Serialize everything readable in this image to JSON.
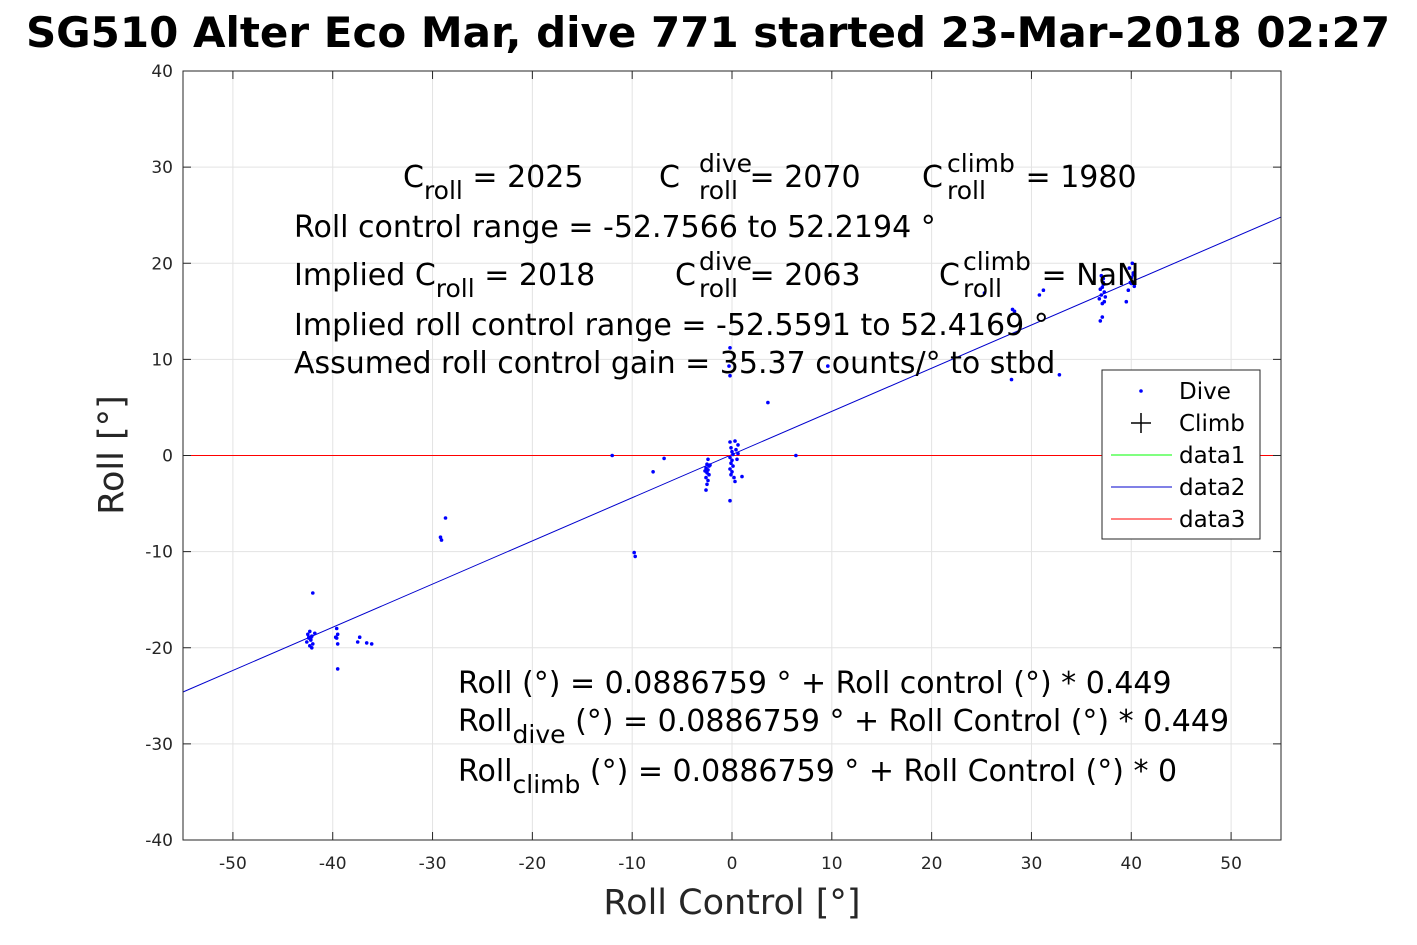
{
  "title": "SG510 Alter Eco Mar, dive 771 started 23-Mar-2018 02:27",
  "chart_data": {
    "type": "scatter",
    "xlabel": "Roll Control [°]",
    "ylabel": "Roll [°]",
    "xlim": [
      -55,
      55
    ],
    "ylim": [
      -40,
      40
    ],
    "xticks": [
      -50,
      -40,
      -30,
      -20,
      -10,
      0,
      10,
      20,
      30,
      40,
      50
    ],
    "yticks": [
      -40,
      -30,
      -20,
      -10,
      0,
      10,
      20,
      30,
      40
    ],
    "grid": true,
    "legend_placement": "right",
    "series": [
      {
        "name": "Dive",
        "marker": "dot",
        "color": "#0000ff",
        "points": [
          [
            -42.0,
            -14.3
          ],
          [
            -42.3,
            -18.3
          ],
          [
            -42.5,
            -18.6
          ],
          [
            -42.1,
            -18.8
          ],
          [
            -42.4,
            -19.0
          ],
          [
            -42.2,
            -19.2
          ],
          [
            -42.6,
            -19.4
          ],
          [
            -42.0,
            -19.6
          ],
          [
            -42.3,
            -19.8
          ],
          [
            -42.1,
            -20.0
          ],
          [
            -41.8,
            -18.5
          ],
          [
            -42.4,
            -18.9
          ],
          [
            -42.2,
            -19.1
          ],
          [
            -39.6,
            -18.0
          ],
          [
            -39.5,
            -18.6
          ],
          [
            -39.7,
            -18.9
          ],
          [
            -39.6,
            -19.0
          ],
          [
            -39.5,
            -19.6
          ],
          [
            -39.5,
            -22.2
          ],
          [
            -37.3,
            -18.9
          ],
          [
            -37.5,
            -19.4
          ],
          [
            -36.6,
            -19.5
          ],
          [
            -36.1,
            -19.6
          ],
          [
            -29.2,
            -8.5
          ],
          [
            -29.1,
            -8.8
          ],
          [
            -28.7,
            -6.5
          ],
          [
            -12.0,
            0.0
          ],
          [
            -9.8,
            -10.1
          ],
          [
            -9.7,
            -10.5
          ],
          [
            -7.9,
            -1.7
          ],
          [
            -6.8,
            -0.3
          ],
          [
            -2.4,
            -0.4
          ],
          [
            -2.5,
            -0.9
          ],
          [
            -2.3,
            -1.1
          ],
          [
            -2.6,
            -1.3
          ],
          [
            -2.4,
            -1.5
          ],
          [
            -2.5,
            -1.8
          ],
          [
            -2.3,
            -2.0
          ],
          [
            -2.6,
            -2.3
          ],
          [
            -2.4,
            -2.6
          ],
          [
            -2.5,
            -3.0
          ],
          [
            -2.6,
            -3.6
          ],
          [
            -2.2,
            -1.0
          ],
          [
            -2.7,
            -1.6
          ],
          [
            -0.2,
            1.4
          ],
          [
            -0.1,
            0.8
          ],
          [
            0.0,
            0.4
          ],
          [
            0.1,
            0.1
          ],
          [
            -0.2,
            -0.2
          ],
          [
            0.0,
            -0.5
          ],
          [
            -0.1,
            -0.8
          ],
          [
            0.1,
            -1.1
          ],
          [
            -0.2,
            -1.4
          ],
          [
            0.0,
            -1.7
          ],
          [
            -0.1,
            -2.0
          ],
          [
            0.2,
            -2.3
          ],
          [
            -0.2,
            -4.7
          ],
          [
            0.3,
            1.5
          ],
          [
            0.6,
            1.1
          ],
          [
            0.4,
            0.6
          ],
          [
            0.5,
            -0.4
          ],
          [
            0.3,
            -2.7
          ],
          [
            1.0,
            -2.2
          ],
          [
            0.6,
            0.2
          ],
          [
            -0.2,
            11.2
          ],
          [
            -0.3,
            9.3
          ],
          [
            -0.2,
            8.3
          ],
          [
            3.6,
            5.5
          ],
          [
            6.4,
            0.0
          ],
          [
            9.6,
            9.3
          ],
          [
            25.3,
            16.9
          ],
          [
            28.1,
            15.2
          ],
          [
            28.3,
            15.0
          ],
          [
            28.0,
            7.9
          ],
          [
            30.8,
            16.7
          ],
          [
            31.2,
            17.2
          ],
          [
            32.8,
            8.4
          ],
          [
            36.9,
            14.0
          ],
          [
            37.1,
            14.4
          ],
          [
            36.8,
            16.3
          ],
          [
            37.0,
            16.7
          ],
          [
            37.3,
            17.0
          ],
          [
            37.1,
            17.5
          ],
          [
            37.2,
            18.0
          ],
          [
            37.4,
            16.5
          ],
          [
            36.9,
            17.3
          ],
          [
            37.2,
            18.4
          ],
          [
            37.0,
            18.7
          ],
          [
            37.3,
            16.0
          ],
          [
            37.1,
            15.8
          ],
          [
            37.2,
            17.8
          ],
          [
            39.5,
            16.0
          ],
          [
            39.7,
            17.2
          ],
          [
            39.9,
            18.0
          ],
          [
            40.0,
            18.5
          ],
          [
            40.2,
            19.0
          ],
          [
            39.8,
            19.5
          ],
          [
            40.1,
            20.0
          ],
          [
            40.3,
            17.6
          ],
          [
            40.0,
            17.9
          ],
          [
            40.2,
            18.8
          ]
        ]
      },
      {
        "name": "Climb",
        "marker": "plus",
        "color": "#000000",
        "points": []
      },
      {
        "name": "data1",
        "marker": "line",
        "color": "#00ff00",
        "points": []
      },
      {
        "name": "data2",
        "marker": "line",
        "color": "#0000cd",
        "points": [
          [
            -55.0,
            -24.6
          ],
          [
            55.0,
            24.8
          ]
        ]
      },
      {
        "name": "data3",
        "marker": "line",
        "color": "#ff0000",
        "points": [
          [
            -55.0,
            0.0
          ],
          [
            55.0,
            0.0
          ]
        ]
      }
    ]
  },
  "annotations": {
    "line1": {
      "c": "C",
      "roll": "roll",
      "eq": " = 2025",
      "c2": "C",
      "dive": "dive",
      "roll2": "roll",
      "eq2": " = 2070",
      "c3": "C",
      "climb": "climb",
      "roll3": "roll",
      "eq3": " = 1980"
    },
    "line2": "Roll control range = -52.7566 to 52.2194 °",
    "line3": {
      "pre": "Implied C",
      "roll": "roll",
      "eq": " = 2018",
      "c2": "C",
      "dive": "dive",
      "roll2": "roll",
      "eq2": " = 2063",
      "c3": "C",
      "climb": "climb",
      "roll3": "roll",
      "eq3": " =  NaN"
    },
    "line4": "Implied roll control range = -52.5591 to 52.4169 °",
    "line5": "Assumed roll control gain = 35.37 counts/° to stbd",
    "fit1": "Roll (°) = 0.0886759 ° + Roll control (°) * 0.449",
    "fit2": {
      "pre": "Roll",
      "sub": "dive",
      "post": " (°) = 0.0886759 ° + Roll Control (°) * 0.449"
    },
    "fit3": {
      "pre": "Roll",
      "sub": "climb",
      "post": " (°) = 0.0886759 ° + Roll Control (°) * 0"
    }
  }
}
